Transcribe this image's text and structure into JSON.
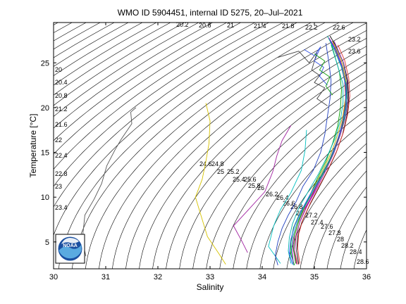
{
  "chart_data": {
    "type": "line",
    "title": "WMO ID 5904451, internal ID 5275, 20–Jul–2021",
    "xlabel": "Salinity",
    "ylabel": "Temperature [°C]",
    "xlim": [
      30,
      36
    ],
    "ylim": [
      2,
      29.5
    ],
    "xticks": [
      30,
      31,
      32,
      33,
      34,
      35,
      36
    ],
    "yticks": [
      5,
      10,
      15,
      20,
      25
    ],
    "grid": false,
    "legend": "none",
    "isopycnals": {
      "step": 0.2,
      "first": 19.8,
      "last": 30.0,
      "labels": [
        "20.2",
        "20.6",
        "21",
        "21.4",
        "21.8",
        "22.2",
        "22.6",
        "23.2",
        "23.6",
        "20",
        "20.4",
        "20.8",
        "21.2",
        "21.6",
        "22",
        "22.4",
        "22.8",
        "23",
        "23.4",
        "24.6",
        "24.8",
        "25",
        "25.2",
        "25.4",
        "25.6",
        "25.8",
        "26",
        "26.2",
        "26.4",
        "26.6",
        "26.8",
        "27",
        "27.2",
        "27.4",
        "27.6",
        "27.8",
        "28",
        "28.2",
        "28.4",
        "28.6"
      ]
    },
    "series": [
      {
        "color": "#555555",
        "points": [
          [
            30.62,
            3.4
          ],
          [
            30.55,
            5.2
          ],
          [
            30.6,
            8.0
          ],
          [
            30.78,
            9.8
          ],
          [
            30.92,
            11.5
          ],
          [
            31.02,
            13.5
          ],
          [
            31.18,
            15.3
          ],
          [
            31.3,
            16.5
          ],
          [
            31.5,
            18.2
          ],
          [
            31.48,
            19.5
          ],
          [
            31.58,
            20.0
          ]
        ]
      },
      {
        "color": "#d6c200",
        "points": [
          [
            33.3,
            2.5
          ],
          [
            33.18,
            3.6
          ],
          [
            32.95,
            5.6
          ],
          [
            32.85,
            7.5
          ],
          [
            32.72,
            10.0
          ],
          [
            32.85,
            12.0
          ],
          [
            32.92,
            14.0
          ],
          [
            32.98,
            16.0
          ],
          [
            33.0,
            18.5
          ],
          [
            32.92,
            20.5
          ]
        ]
      },
      {
        "color": "#a020a0",
        "points": [
          [
            33.72,
            3.8
          ],
          [
            33.6,
            5.2
          ],
          [
            33.45,
            6.8
          ],
          [
            33.72,
            8.5
          ],
          [
            34.05,
            10.6
          ],
          [
            34.2,
            12.8
          ],
          [
            34.28,
            14.6
          ],
          [
            34.38,
            16.3
          ],
          [
            34.55,
            18.0
          ]
        ]
      },
      {
        "color": "#00c0c0",
        "points": [
          [
            34.35,
            2.6
          ],
          [
            34.12,
            4.5
          ],
          [
            34.22,
            6.8
          ],
          [
            34.35,
            8.6
          ],
          [
            34.55,
            10.5
          ],
          [
            34.75,
            13.0
          ],
          [
            34.82,
            15.2
          ],
          [
            34.85,
            17.5
          ]
        ]
      },
      {
        "color": "#1f3fbf",
        "points": [
          [
            34.3,
            2.4
          ],
          [
            34.25,
            3.5
          ],
          [
            34.3,
            5.0
          ],
          [
            34.38,
            6.5
          ],
          [
            34.5,
            8.0
          ],
          [
            34.65,
            9.5
          ],
          [
            34.78,
            11.2
          ],
          [
            34.98,
            13.0
          ],
          [
            35.12,
            15.0
          ],
          [
            35.2,
            17.0
          ],
          [
            35.25,
            19.0
          ],
          [
            35.3,
            21.0
          ],
          [
            35.32,
            23.0
          ],
          [
            35.28,
            25.0
          ],
          [
            35.22,
            27.2
          ]
        ]
      },
      {
        "color": "#00a000",
        "points": [
          [
            34.62,
            2.4
          ],
          [
            34.55,
            3.6
          ],
          [
            34.55,
            5.0
          ],
          [
            34.6,
            6.6
          ],
          [
            34.72,
            8.2
          ],
          [
            34.9,
            10.0
          ],
          [
            35.05,
            12.0
          ],
          [
            35.22,
            14.0
          ],
          [
            35.35,
            16.0
          ],
          [
            35.45,
            18.0
          ],
          [
            35.5,
            20.0
          ],
          [
            35.52,
            22.0
          ],
          [
            35.48,
            24.0
          ],
          [
            35.38,
            26.0
          ],
          [
            35.3,
            27.6
          ]
        ]
      },
      {
        "color": "#d02020",
        "points": [
          [
            34.68,
            2.5
          ],
          [
            34.62,
            4.0
          ],
          [
            34.65,
            5.6
          ],
          [
            34.72,
            7.2
          ],
          [
            34.85,
            9.0
          ],
          [
            35.02,
            11.0
          ],
          [
            35.2,
            13.0
          ],
          [
            35.35,
            15.0
          ],
          [
            35.48,
            17.0
          ],
          [
            35.56,
            19.0
          ],
          [
            35.6,
            21.0
          ],
          [
            35.58,
            23.0
          ],
          [
            35.5,
            25.0
          ],
          [
            35.35,
            27.2
          ]
        ]
      },
      {
        "color": "#00b0b0",
        "points": [
          [
            34.55,
            2.6
          ],
          [
            34.5,
            4.0
          ],
          [
            34.52,
            5.5
          ],
          [
            34.58,
            7.0
          ],
          [
            34.7,
            8.8
          ],
          [
            34.88,
            10.6
          ],
          [
            35.08,
            12.6
          ],
          [
            35.25,
            14.6
          ],
          [
            35.4,
            16.6
          ],
          [
            35.5,
            18.6
          ],
          [
            35.55,
            20.6
          ],
          [
            35.55,
            22.6
          ],
          [
            35.45,
            24.6
          ],
          [
            35.32,
            27.0
          ]
        ]
      },
      {
        "color": "#c000c0",
        "points": [
          [
            34.6,
            2.5
          ],
          [
            34.58,
            3.8
          ],
          [
            34.6,
            5.4
          ],
          [
            34.68,
            7.0
          ],
          [
            34.8,
            8.6
          ],
          [
            34.98,
            10.4
          ],
          [
            35.15,
            12.4
          ],
          [
            35.32,
            14.4
          ],
          [
            35.45,
            16.4
          ],
          [
            35.55,
            18.4
          ],
          [
            35.62,
            20.4
          ],
          [
            35.62,
            22.4
          ],
          [
            35.55,
            24.4
          ],
          [
            35.42,
            26.4
          ],
          [
            35.28,
            27.8
          ]
        ]
      },
      {
        "color": "#b0b000",
        "points": [
          [
            34.65,
            2.6
          ],
          [
            34.6,
            4.2
          ],
          [
            34.62,
            5.8
          ],
          [
            34.7,
            7.4
          ],
          [
            34.82,
            9.2
          ],
          [
            35.0,
            11.2
          ],
          [
            35.18,
            13.2
          ],
          [
            35.34,
            15.2
          ],
          [
            35.46,
            17.2
          ],
          [
            35.55,
            19.2
          ],
          [
            35.6,
            21.2
          ],
          [
            35.6,
            23.2
          ],
          [
            35.52,
            25.2
          ],
          [
            35.35,
            27.4
          ]
        ]
      },
      {
        "color": "#000000",
        "points": [
          [
            34.7,
            2.5
          ],
          [
            34.66,
            4.0
          ],
          [
            34.68,
            5.6
          ],
          [
            34.76,
            7.2
          ],
          [
            34.9,
            9.0
          ],
          [
            35.08,
            11.0
          ],
          [
            35.26,
            13.0
          ],
          [
            35.42,
            15.0
          ],
          [
            35.54,
            17.0
          ],
          [
            35.62,
            19.0
          ],
          [
            35.66,
            21.0
          ],
          [
            35.64,
            23.0
          ],
          [
            35.56,
            25.0
          ],
          [
            35.4,
            27.0
          ],
          [
            35.3,
            28.0
          ]
        ]
      },
      {
        "color": "#2050ff",
        "points": [
          [
            34.58,
            2.5
          ],
          [
            34.52,
            3.8
          ],
          [
            34.55,
            5.3
          ],
          [
            34.62,
            6.8
          ],
          [
            34.75,
            8.5
          ],
          [
            34.92,
            10.3
          ],
          [
            35.12,
            12.3
          ],
          [
            35.3,
            14.3
          ],
          [
            35.44,
            16.3
          ],
          [
            35.54,
            18.3
          ],
          [
            35.6,
            20.3
          ],
          [
            35.6,
            22.3
          ],
          [
            35.54,
            24.3
          ],
          [
            35.42,
            26.3
          ],
          [
            35.3,
            27.5
          ]
        ]
      },
      {
        "color": "#20a020",
        "points": [
          [
            34.64,
            2.6
          ],
          [
            34.6,
            4.1
          ],
          [
            34.62,
            5.7
          ],
          [
            34.7,
            7.3
          ],
          [
            34.83,
            9.1
          ],
          [
            35.02,
            11.1
          ],
          [
            35.2,
            13.1
          ],
          [
            35.37,
            15.1
          ],
          [
            35.5,
            17.1
          ],
          [
            35.58,
            19.1
          ],
          [
            35.63,
            21.1
          ],
          [
            35.62,
            23.1
          ],
          [
            35.55,
            25.1
          ],
          [
            35.4,
            27.1
          ]
        ]
      },
      {
        "color": "#e03030",
        "points": [
          [
            34.72,
            2.6
          ],
          [
            34.68,
            4.3
          ],
          [
            34.7,
            5.9
          ],
          [
            34.78,
            7.5
          ],
          [
            34.92,
            9.3
          ],
          [
            35.1,
            11.3
          ],
          [
            35.28,
            13.3
          ],
          [
            35.44,
            15.3
          ],
          [
            35.56,
            17.3
          ],
          [
            35.64,
            19.3
          ],
          [
            35.68,
            21.3
          ],
          [
            35.66,
            23.3
          ],
          [
            35.58,
            25.3
          ],
          [
            35.45,
            27.0
          ]
        ]
      },
      {
        "color": "#00a0a0",
        "points": [
          [
            34.6,
            2.4
          ],
          [
            34.56,
            3.9
          ],
          [
            34.58,
            5.4
          ],
          [
            34.66,
            7.0
          ],
          [
            34.78,
            8.7
          ],
          [
            34.96,
            10.5
          ],
          [
            35.16,
            12.5
          ],
          [
            35.33,
            14.5
          ],
          [
            35.47,
            16.5
          ],
          [
            35.57,
            18.5
          ],
          [
            35.62,
            20.5
          ],
          [
            35.61,
            22.5
          ],
          [
            35.52,
            24.5
          ],
          [
            35.38,
            26.5
          ],
          [
            35.25,
            28.0
          ]
        ]
      },
      {
        "color": "#9020b0",
        "points": [
          [
            34.66,
            2.5
          ],
          [
            34.62,
            4.0
          ],
          [
            34.64,
            5.6
          ],
          [
            34.72,
            7.2
          ],
          [
            34.86,
            9.0
          ],
          [
            35.05,
            11.0
          ],
          [
            35.22,
            13.0
          ],
          [
            35.38,
            15.0
          ],
          [
            35.5,
            17.0
          ],
          [
            35.6,
            19.0
          ],
          [
            35.64,
            21.0
          ],
          [
            35.63,
            23.0
          ],
          [
            35.56,
            25.0
          ],
          [
            35.38,
            27.4
          ]
        ]
      },
      {
        "color": "#404040",
        "points": [
          [
            34.3,
            25.6
          ],
          [
            34.7,
            26.3
          ],
          [
            34.9,
            25.0
          ],
          [
            35.05,
            26.2
          ],
          [
            34.95,
            24.2
          ],
          [
            35.1,
            23.6
          ],
          [
            35.0,
            22.8
          ],
          [
            35.2,
            22.2
          ],
          [
            35.05,
            21.0
          ],
          [
            35.25,
            20.2
          ]
        ]
      },
      {
        "color": "#3050e0",
        "points": [
          [
            34.8,
            26.5
          ],
          [
            35.0,
            25.8
          ],
          [
            35.12,
            26.8
          ],
          [
            35.0,
            25.2
          ],
          [
            35.18,
            24.5
          ],
          [
            35.1,
            23.5
          ],
          [
            35.25,
            22.5
          ]
        ]
      },
      {
        "color": "#10a010",
        "points": [
          [
            35.0,
            26.0
          ],
          [
            35.2,
            25.2
          ],
          [
            35.1,
            24.2
          ],
          [
            35.3,
            23.4
          ],
          [
            35.22,
            22.4
          ],
          [
            35.35,
            21.4
          ]
        ]
      }
    ]
  }
}
